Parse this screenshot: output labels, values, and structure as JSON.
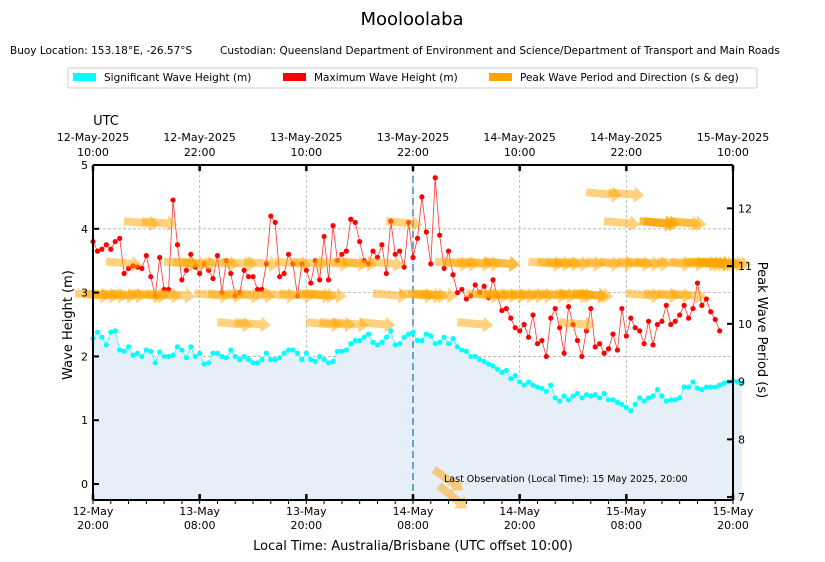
{
  "chart_data": {
    "type": "line",
    "title": "Mooloolaba",
    "subtitle_location": "Buoy Location: 153.18°E, -26.57°S",
    "subtitle_custodian": "Custodian: Queensland Department of Environment and Science/Department of Transport and Main Roads",
    "legend": {
      "placement": "top-center",
      "entries": [
        {
          "label": "Significant Wave Height (m)",
          "color": "#00ffff"
        },
        {
          "label": "Maximum Wave Height (m)",
          "color": "#ff0000"
        },
        {
          "label": "Peak Wave Period and Direction (s & deg)",
          "color": "#ffa500"
        }
      ]
    },
    "xlabel": "Local Time: Australia/Brisbane (UTC offset 10:00)",
    "ylabel": "Wave Height (m)",
    "y2label": "Peak Wave Period (s)",
    "top_axis_label": "UTC",
    "x_range_hours": [
      0,
      72
    ],
    "ylim": [
      -0.25,
      5
    ],
    "y2lim": [
      6.95,
      12.75
    ],
    "yticks": [
      0,
      1,
      2,
      3,
      4,
      5
    ],
    "y2ticks": [
      7,
      8,
      9,
      10,
      11,
      12
    ],
    "grid": true,
    "xticks_bottom": [
      {
        "hour": 0,
        "line1": "12-May",
        "line2": "20:00"
      },
      {
        "hour": 12,
        "line1": "13-May",
        "line2": "08:00"
      },
      {
        "hour": 24,
        "line1": "13-May",
        "line2": "20:00"
      },
      {
        "hour": 36,
        "line1": "14-May",
        "line2": "08:00"
      },
      {
        "hour": 48,
        "line1": "14-May",
        "line2": "20:00"
      },
      {
        "hour": 60,
        "line1": "15-May",
        "line2": "08:00"
      },
      {
        "hour": 72,
        "line1": "15-May",
        "line2": "20:00"
      }
    ],
    "xticks_top": [
      {
        "hour": 0,
        "line1": "12-May-2025",
        "line2": "10:00"
      },
      {
        "hour": 12,
        "line1": "12-May-2025",
        "line2": "22:00"
      },
      {
        "hour": 24,
        "line1": "13-May-2025",
        "line2": "10:00"
      },
      {
        "hour": 36,
        "line1": "13-May-2025",
        "line2": "22:00"
      },
      {
        "hour": 48,
        "line1": "14-May-2025",
        "line2": "10:00"
      },
      {
        "hour": 60,
        "line1": "14-May-2025",
        "line2": "22:00"
      },
      {
        "hour": 72,
        "line1": "15-May-2025",
        "line2": "10:00"
      }
    ],
    "now_marker_hour": 36,
    "annotation": "Last Observation (Local Time): 15 May 2025, 20:00",
    "step_hours": 0.5,
    "series": [
      {
        "name": "Significant Wave Height (m)",
        "color": "#00ffff",
        "values": [
          2.28,
          2.38,
          2.3,
          2.18,
          2.38,
          2.4,
          2.1,
          2.08,
          2.15,
          2.02,
          2.05,
          2.0,
          2.1,
          2.08,
          1.9,
          2.07,
          2.0,
          2.0,
          2.02,
          2.15,
          2.1,
          1.98,
          2.15,
          2.0,
          2.05,
          1.88,
          1.9,
          2.05,
          2.05,
          2.0,
          1.98,
          2.1,
          2.0,
          1.95,
          2.0,
          1.95,
          1.9,
          1.9,
          1.95,
          2.05,
          1.95,
          1.95,
          1.98,
          2.05,
          2.1,
          2.1,
          2.05,
          1.95,
          2.05,
          1.95,
          1.92,
          2.0,
          1.95,
          1.9,
          1.92,
          2.08,
          2.08,
          2.1,
          2.2,
          2.25,
          2.25,
          2.3,
          2.35,
          2.22,
          2.18,
          2.22,
          2.3,
          2.4,
          2.18,
          2.2,
          2.3,
          2.35,
          2.38,
          2.25,
          2.25,
          2.35,
          2.32,
          2.2,
          2.22,
          2.3,
          2.2,
          2.28,
          2.15,
          2.1,
          2.08,
          2.0,
          2.0,
          1.95,
          1.92,
          1.88,
          1.85,
          1.8,
          1.75,
          1.78,
          1.65,
          1.7,
          1.6,
          1.55,
          1.6,
          1.55,
          1.52,
          1.5,
          1.45,
          1.55,
          1.35,
          1.3,
          1.38,
          1.32,
          1.38,
          1.42,
          1.35,
          1.4,
          1.38,
          1.4,
          1.35,
          1.42,
          1.32,
          1.32,
          1.28,
          1.25,
          1.2,
          1.15,
          1.25,
          1.35,
          1.3,
          1.35,
          1.38,
          1.48,
          1.38,
          1.3,
          1.32,
          1.32,
          1.35,
          1.52,
          1.52,
          1.6,
          1.5,
          1.48,
          1.52,
          1.52,
          1.52,
          1.55,
          1.58,
          1.6,
          1.62,
          1.6,
          1.58
        ]
      },
      {
        "name": "Maximum Wave Height (m)",
        "color": "#ff0000",
        "values": [
          3.8,
          3.65,
          3.68,
          3.75,
          3.68,
          3.8,
          3.85,
          3.3,
          3.38,
          3.42,
          3.4,
          3.38,
          3.58,
          3.25,
          2.95,
          3.55,
          3.05,
          3.05,
          4.45,
          3.75,
          3.2,
          3.35,
          3.6,
          3.4,
          3.3,
          3.45,
          3.35,
          3.22,
          3.58,
          3.0,
          3.5,
          3.3,
          2.95,
          3.0,
          3.35,
          3.25,
          3.25,
          3.05,
          3.05,
          3.45,
          4.2,
          4.1,
          3.25,
          3.3,
          3.6,
          3.45,
          2.95,
          3.45,
          3.35,
          3.15,
          3.5,
          3.2,
          3.88,
          3.2,
          4.05,
          3.5,
          3.6,
          3.65,
          4.15,
          4.1,
          3.8,
          3.5,
          3.45,
          3.65,
          3.55,
          3.75,
          3.3,
          4.12,
          3.6,
          3.65,
          3.4,
          4.1,
          3.55,
          3.85,
          4.5,
          3.95,
          3.45,
          4.8,
          3.9,
          3.38,
          3.65,
          3.28,
          3.0,
          3.05,
          2.9,
          2.95,
          3.12,
          3.0,
          3.1,
          2.92,
          3.2,
          2.95,
          2.72,
          2.75,
          2.6,
          2.45,
          2.4,
          2.5,
          2.3,
          2.65,
          2.2,
          2.25,
          2.0,
          2.6,
          2.75,
          2.45,
          2.05,
          2.78,
          2.5,
          2.25,
          2.0,
          2.4,
          2.75,
          2.15,
          2.2,
          2.05,
          2.12,
          2.35,
          2.1,
          2.75,
          2.32,
          2.6,
          2.45,
          2.4,
          2.2,
          2.55,
          2.18,
          2.5,
          2.55,
          2.8,
          2.5,
          2.55,
          2.65,
          2.8,
          2.6,
          2.75,
          3.15,
          2.8,
          2.9,
          2.7,
          2.58,
          2.4
        ]
      },
      {
        "name": "Peak Wave Period (s)",
        "color": "#ffa500",
        "values": [
          10.5,
          10.5,
          10.5,
          10.5,
          10.5,
          10.5,
          11.05,
          11.75,
          11.75,
          10.5,
          10.5,
          11.05,
          11.05,
          11.05,
          10.5,
          10.5,
          10.5,
          11.05,
          11.05,
          10.5,
          10.5,
          10.5,
          11.05,
          10.0,
          10.0,
          11.05,
          10.5,
          10.5,
          10.5,
          11.05,
          11.05,
          11.05,
          10.5,
          10.0,
          10.0,
          10.0,
          11.05,
          11.05,
          10.5,
          10.0,
          11.75,
          10.5,
          10.5,
          10.5,
          10.5,
          11.05,
          11.05,
          11.05,
          11.05,
          11.05,
          10.0,
          10.5,
          10.5,
          10.5,
          10.5,
          10.5,
          10.5,
          10.5,
          10.5,
          10.5,
          10.5,
          10.5,
          11.05,
          11.05,
          11.05,
          11.05,
          11.05,
          11.05,
          11.05,
          10.5,
          11.75,
          12.25,
          11.75,
          11.75,
          10.5,
          11.05,
          11.05,
          11.05,
          11.05,
          10.5,
          10.5,
          11.05,
          11.05,
          11.05,
          11.05,
          11.05,
          11.05,
          11.75,
          11.75,
          11.05,
          11.05,
          11.05,
          11.05,
          11.75,
          11.75,
          12.25,
          10.5,
          10.5,
          10.5,
          10.0,
          11.05,
          7.0,
          7.3
        ],
        "direction_deg": [
          95,
          95,
          95,
          95,
          95,
          95,
          95,
          95,
          95,
          95,
          95,
          95,
          95,
          95,
          95,
          95,
          95,
          95,
          95,
          95,
          95,
          95,
          95,
          95,
          95,
          95,
          95,
          95,
          95,
          95,
          95,
          95,
          95,
          95,
          95,
          95,
          95,
          95,
          95,
          95,
          95,
          95,
          95,
          95,
          95,
          95,
          95,
          95,
          95,
          95,
          95,
          95,
          95,
          95,
          95,
          95,
          95,
          95,
          95,
          95,
          95,
          95,
          95,
          95,
          95,
          95,
          95,
          95,
          95,
          95,
          95,
          95,
          95,
          95,
          95,
          95,
          95,
          95,
          95,
          95,
          95,
          95,
          95,
          95,
          95,
          95,
          95,
          95,
          95,
          95,
          95,
          95,
          95,
          95,
          95,
          95,
          95,
          95,
          95,
          95,
          95,
          130,
          125
        ],
        "hours": [
          0,
          1,
          2,
          3,
          4,
          6,
          3.5,
          5.5,
          7.5,
          6.5,
          9.5,
          10,
          11,
          12,
          8,
          13.5,
          15,
          14.5,
          16.5,
          17,
          18.5,
          21,
          19,
          16,
          18,
          22.5,
          23,
          25,
          26.5,
          24.5,
          27,
          29,
          25.5,
          26,
          27.5,
          29,
          30,
          33,
          33.5,
          32,
          35,
          36.5,
          37.5,
          38,
          39,
          40.5,
          41.5,
          43,
          44,
          46,
          43,
          44,
          45,
          46,
          47,
          48,
          49,
          50,
          51.5,
          52.5,
          54,
          56,
          51,
          52,
          53,
          54,
          55.5,
          57.5,
          59,
          56.5,
          59.5,
          57.5,
          63.5,
          64,
          62,
          61,
          63,
          65.5,
          69,
          64,
          65.5,
          68.5,
          69.5,
          70.5,
          71.5,
          72,
          70,
          66.5,
          67,
          67,
          70,
          71,
          62,
          63.5,
          64,
          60,
          67,
          56,
          54.5,
          54.5,
          46,
          40.5,
          40
        ]
      }
    ]
  }
}
